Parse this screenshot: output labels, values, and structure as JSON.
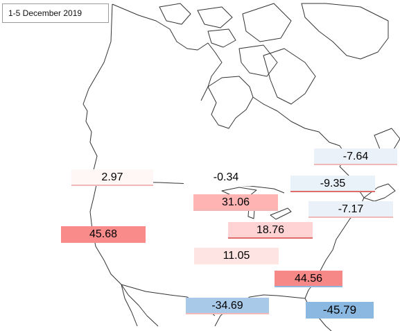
{
  "title": "1-5 December 2019",
  "regions": [
    {
      "id": "northwest-coast",
      "value": "2.97",
      "color": "#fff6f6"
    },
    {
      "id": "north-central",
      "value": "-0.34",
      "color": "#ffffff"
    },
    {
      "id": "great-lakes",
      "value": "31.06",
      "color": "#ffb4b4"
    },
    {
      "id": "northeast-1",
      "value": "-7.64",
      "color": "#eaf1f9"
    },
    {
      "id": "northeast-2",
      "value": "-9.35",
      "color": "#e9f1f9"
    },
    {
      "id": "northeast-3",
      "value": "-7.17",
      "color": "#eaf1f9"
    },
    {
      "id": "west",
      "value": "45.68",
      "color": "#f98b8b"
    },
    {
      "id": "ohio-valley",
      "value": "18.76",
      "color": "#ffd3d3"
    },
    {
      "id": "south-central",
      "value": "11.05",
      "color": "#ffe4e4"
    },
    {
      "id": "southeast",
      "value": "44.56",
      "color": "#f78888"
    },
    {
      "id": "gulf-coast",
      "value": "-34.69",
      "color": "#a8c9e8"
    },
    {
      "id": "florida",
      "value": "-45.79",
      "color": "#8ab8e0"
    }
  ]
}
